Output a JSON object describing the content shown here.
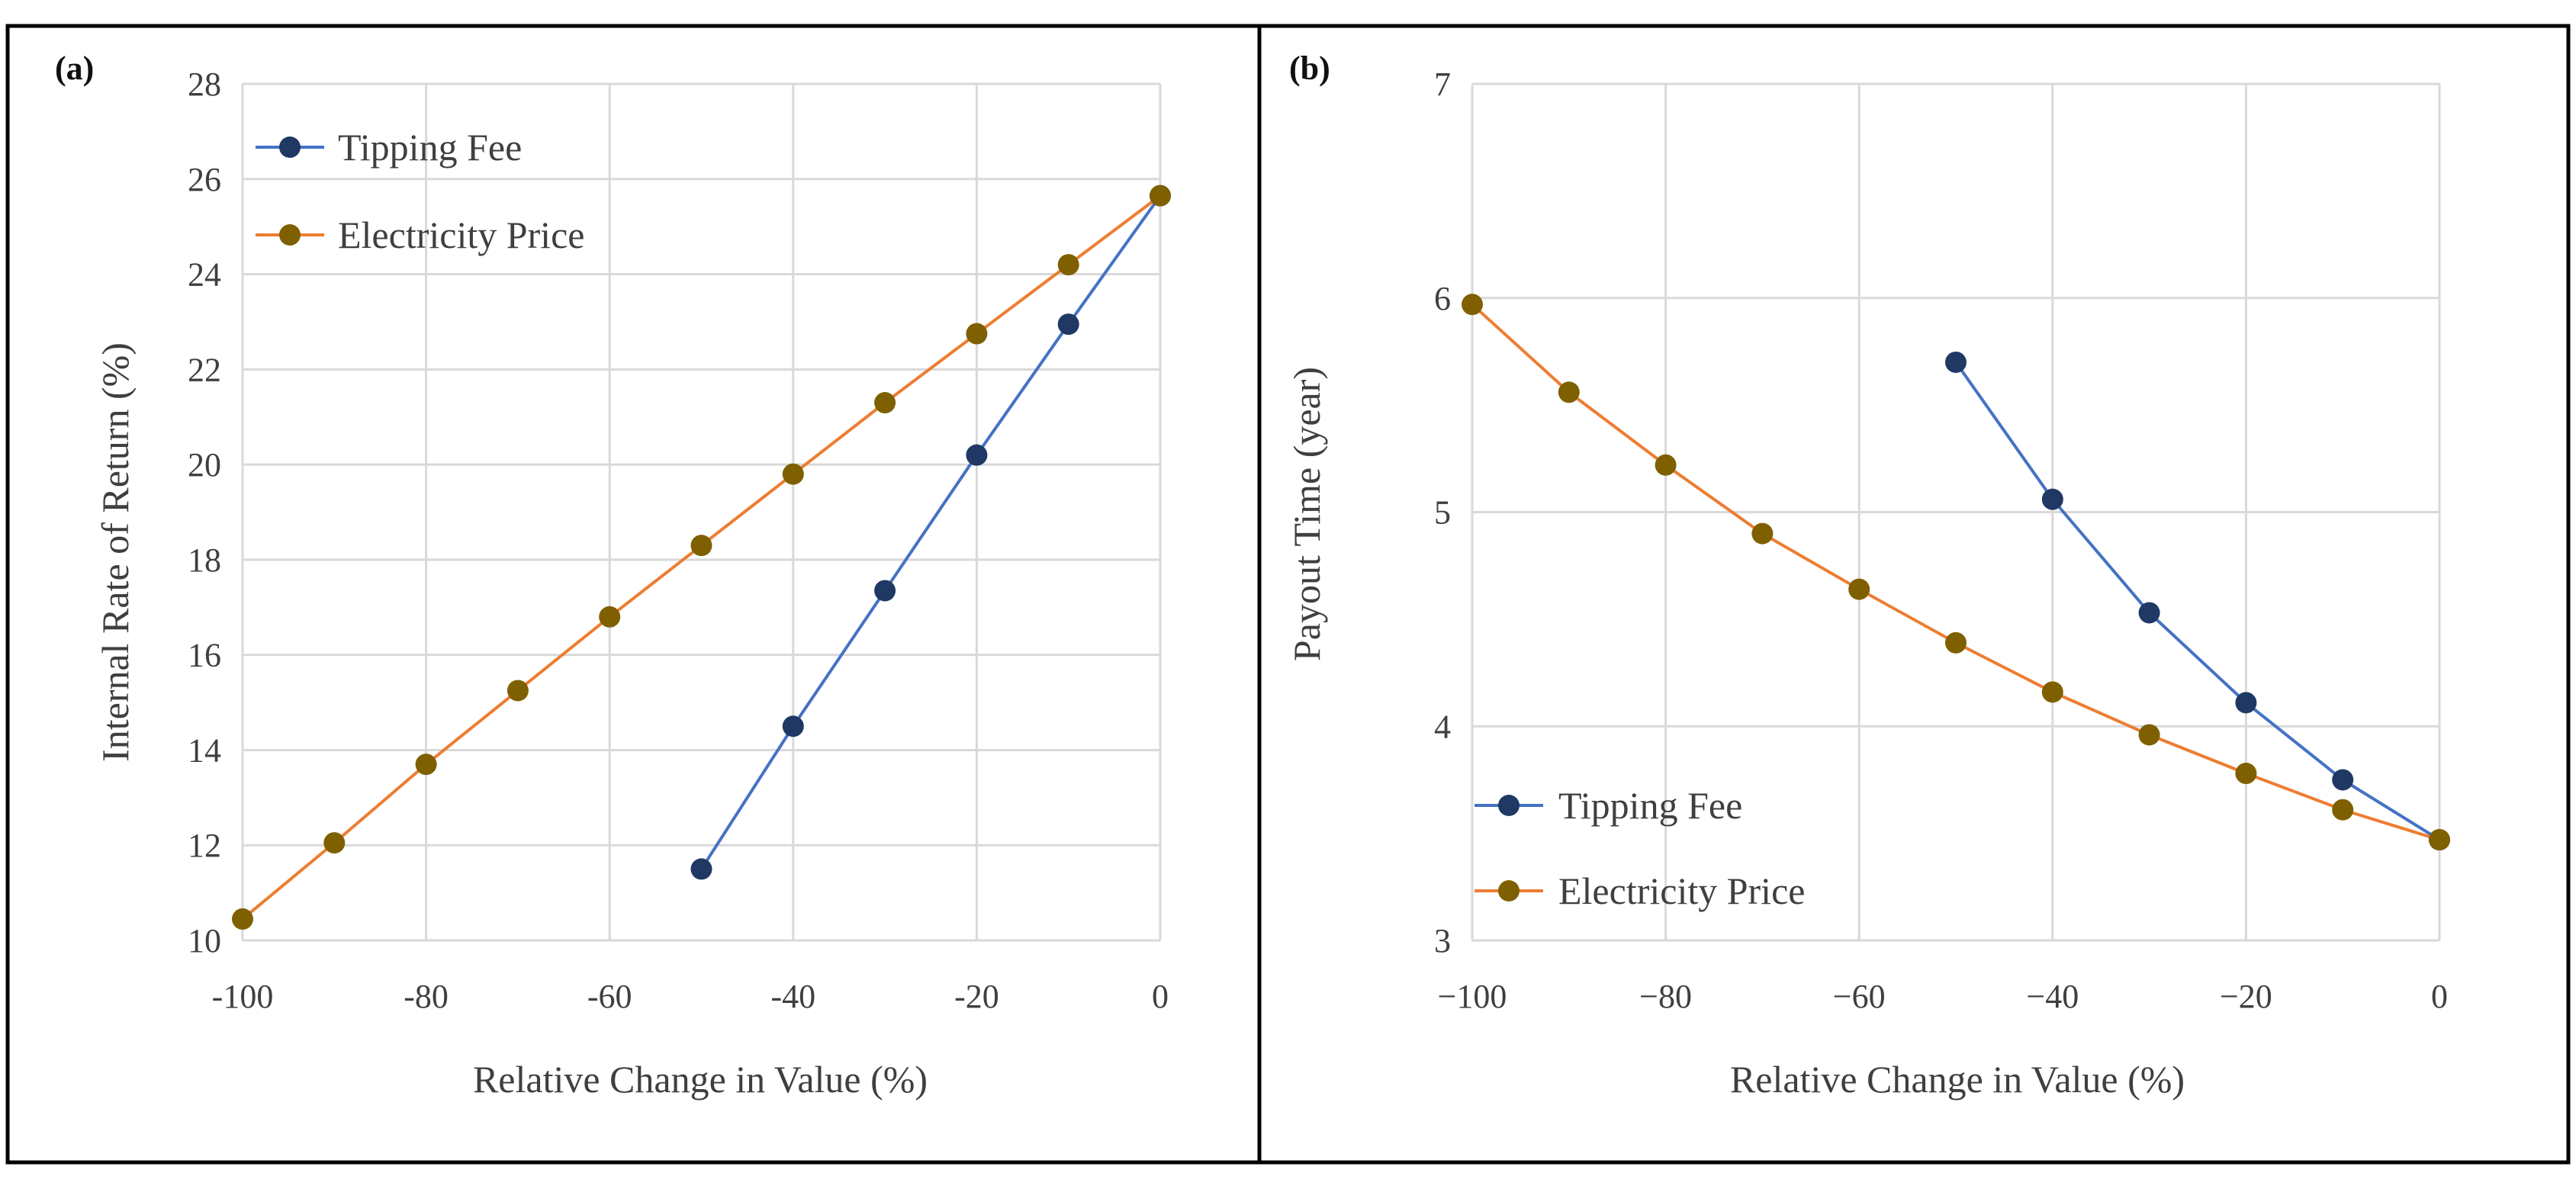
{
  "colors": {
    "tipping_line": "#4472c4",
    "tipping_marker": "#1f3864",
    "electricity_line": "#ed7d31",
    "electricity_marker": "#7f6000",
    "grid": "#d9d9d9",
    "frame": "#000000"
  },
  "chart_data": [
    {
      "type": "line",
      "panel_label": "(a)",
      "title": "",
      "xlabel": "Relative Change in Value (%)",
      "ylabel": "Internal Rate of Return (%)",
      "xlim": [
        -100,
        0
      ],
      "ylim": [
        10,
        28
      ],
      "x_ticks": [
        -100,
        -80,
        -60,
        -40,
        -20,
        0
      ],
      "y_ticks": [
        10,
        12,
        14,
        16,
        18,
        20,
        22,
        24,
        26,
        28
      ],
      "grid": true,
      "legend_position": "top-left",
      "series": [
        {
          "name": "Tipping Fee",
          "key": "tipping",
          "x": [
            -50,
            -40,
            -30,
            -20,
            -10,
            0
          ],
          "values": [
            11.5,
            14.5,
            17.35,
            20.2,
            22.95,
            25.65
          ]
        },
        {
          "name": "Electricity Price",
          "key": "electricity",
          "x": [
            -100,
            -90,
            -80,
            -70,
            -60,
            -50,
            -40,
            -30,
            -20,
            -10,
            0
          ],
          "values": [
            10.45,
            12.05,
            13.7,
            15.25,
            16.8,
            18.3,
            19.8,
            21.3,
            22.75,
            24.2,
            25.65
          ]
        }
      ]
    },
    {
      "type": "line",
      "panel_label": "(b)",
      "title": "",
      "xlabel": "Relative Change in Value (%)",
      "ylabel": "Payout Time (year)",
      "xlim": [
        -100,
        0
      ],
      "ylim": [
        3,
        7
      ],
      "x_ticks": [
        -100,
        -80,
        -60,
        -40,
        -20,
        0
      ],
      "x_tick_labels": [
        "−100",
        "−80",
        "−60",
        "−40",
        "−20",
        "0"
      ],
      "y_ticks": [
        3,
        4,
        5,
        6,
        7
      ],
      "grid": true,
      "legend_position": "bottom-left",
      "series": [
        {
          "name": "Tipping Fee",
          "key": "tipping",
          "x": [
            -50,
            -40,
            -30,
            -20,
            -10,
            0
          ],
          "values": [
            5.7,
            5.06,
            4.53,
            4.11,
            3.75,
            3.47
          ]
        },
        {
          "name": "Electricity Price",
          "key": "electricity",
          "x": [
            -100,
            -90,
            -80,
            -70,
            -60,
            -50,
            -40,
            -30,
            -20,
            -10,
            0
          ],
          "values": [
            5.97,
            5.56,
            5.22,
            4.9,
            4.64,
            4.39,
            4.16,
            3.96,
            3.78,
            3.61,
            3.47
          ]
        }
      ]
    }
  ]
}
